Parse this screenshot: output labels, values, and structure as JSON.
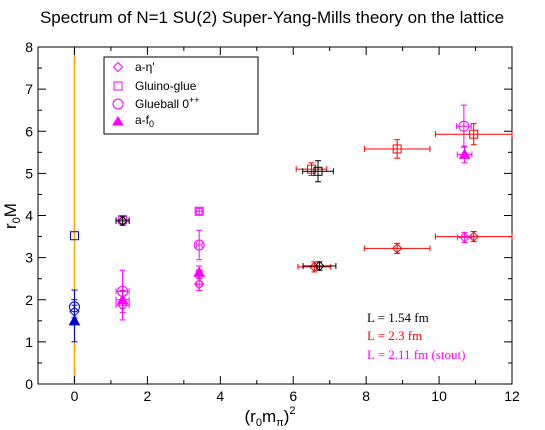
{
  "chart_data": {
    "type": "scatter",
    "title": "Spectrum of N=1 SU(2) Super-Yang-Mills theory on the lattice",
    "xlabel": {
      "main": "(r",
      "sub1": "0",
      "mid": "m",
      "sub2": "π",
      "end": ")",
      "sup": "2"
    },
    "ylabel": {
      "main": "r",
      "sub": "0",
      "end": "M"
    },
    "xlim": [
      -1,
      12
    ],
    "ylim": [
      0,
      8
    ],
    "x_ticks": [
      "0",
      "2",
      "4",
      "6",
      "8",
      "10",
      "12"
    ],
    "y_ticks": [
      "0",
      "1",
      "2",
      "3",
      "4",
      "5",
      "6",
      "7",
      "8"
    ],
    "vertical_reference_line": {
      "x": 0,
      "color": "#FFA500"
    },
    "legend": [
      {
        "label": "a-η'",
        "marker": "diamond",
        "color": "#FF00FF"
      },
      {
        "label": "Gluino-glue",
        "marker": "square",
        "color": "#FF00FF"
      },
      {
        "label": "Glueball 0",
        "sup": "++",
        "marker": "circle",
        "color": "#FF00FF"
      },
      {
        "label": "a-f",
        "sub": "0",
        "marker": "triangle",
        "color": "#FF00FF"
      }
    ],
    "ensembles": [
      {
        "label": "L = 1.54 fm",
        "color": "#000000"
      },
      {
        "label": "L = 2.3 fm",
        "color": "#FF0000"
      },
      {
        "label": "L = 2.11 fm (stout)",
        "color": "#FF00FF"
      }
    ],
    "points": [
      {
        "marker": "square",
        "color": "#0000CC",
        "x": 0,
        "y": 3.52,
        "yerr": 0
      },
      {
        "marker": "circle",
        "color": "#0000CC",
        "x": 0,
        "y": 1.83,
        "yerr": 0.4
      },
      {
        "marker": "diamond",
        "color": "#0000CC",
        "x": 0,
        "y": 1.72,
        "yerr": 0.15
      },
      {
        "marker": "triangle",
        "color": "#0000CC",
        "x": 0,
        "y": 1.5,
        "yerr": 0.5
      },
      {
        "marker": "square",
        "color": "#FF00FF",
        "x": 1.32,
        "y": 3.9,
        "xerr": 0.18,
        "yerr": 0.1
      },
      {
        "marker": "diamond",
        "color": "#000000",
        "x": 1.32,
        "y": 3.87,
        "xerr": 0.18,
        "yerr": 0.1
      },
      {
        "marker": "circle",
        "color": "#FF00FF",
        "x": 1.32,
        "y": 2.2,
        "xerr": 0.18,
        "yerr": 0.5
      },
      {
        "marker": "triangle",
        "color": "#FF00FF",
        "x": 1.32,
        "y": 2.0,
        "xerr": 0.18,
        "yerr": 0.2
      },
      {
        "marker": "diamond",
        "color": "#FF00FF",
        "x": 1.32,
        "y": 1.87,
        "xerr": 0.18,
        "yerr": 0.35
      },
      {
        "marker": "square",
        "color": "#FF00FF",
        "x": 3.42,
        "y": 4.1,
        "xerr": 0.08,
        "yerr": 0.07
      },
      {
        "marker": "circle",
        "color": "#FF00FF",
        "x": 3.42,
        "y": 3.3,
        "xerr": 0.08,
        "yerr": 0.35
      },
      {
        "marker": "triangle",
        "color": "#FF00FF",
        "x": 3.42,
        "y": 2.65,
        "xerr": 0.08,
        "yerr": 0.15
      },
      {
        "marker": "diamond",
        "color": "#FF00FF",
        "x": 3.42,
        "y": 2.37,
        "xerr": 0.08,
        "yerr": 0.15
      },
      {
        "marker": "square",
        "color": "#FF0000",
        "x": 6.5,
        "y": 5.1,
        "xerr": 0.42,
        "yerr": 0.15
      },
      {
        "marker": "square",
        "color": "#000000",
        "x": 6.68,
        "y": 5.05,
        "xerr": 0.42,
        "yerr": 0.25
      },
      {
        "marker": "diamond",
        "color": "#FF0000",
        "x": 6.58,
        "y": 2.78,
        "xerr": 0.45,
        "yerr": 0.12
      },
      {
        "marker": "diamond",
        "color": "#000000",
        "x": 6.72,
        "y": 2.8,
        "xerr": 0.45,
        "yerr": 0.1
      },
      {
        "marker": "square",
        "color": "#FF0000",
        "x": 8.85,
        "y": 5.58,
        "xerr": 0.9,
        "yerr": 0.22
      },
      {
        "marker": "diamond",
        "color": "#FF0000",
        "x": 8.85,
        "y": 3.22,
        "xerr": 0.9,
        "yerr": 0.12
      },
      {
        "marker": "circle",
        "color": "#FF00FF",
        "x": 10.68,
        "y": 6.12,
        "xerr": 0.2,
        "yerr": 0.5
      },
      {
        "marker": "square",
        "color": "#FF0000",
        "x": 10.95,
        "y": 5.93,
        "xerr": 1.05,
        "yerr": 0.25
      },
      {
        "marker": "triangle",
        "color": "#FF00FF",
        "x": 10.7,
        "y": 5.45,
        "xerr": 0.2,
        "yerr": 0.2
      },
      {
        "marker": "diamond",
        "color": "#FF0000",
        "x": 10.95,
        "y": 3.5,
        "xerr": 1.05,
        "yerr": 0.12
      },
      {
        "marker": "diamond",
        "color": "#FF00FF",
        "x": 10.7,
        "y": 3.48,
        "xerr": 0.2,
        "yerr": 0.12
      }
    ]
  }
}
